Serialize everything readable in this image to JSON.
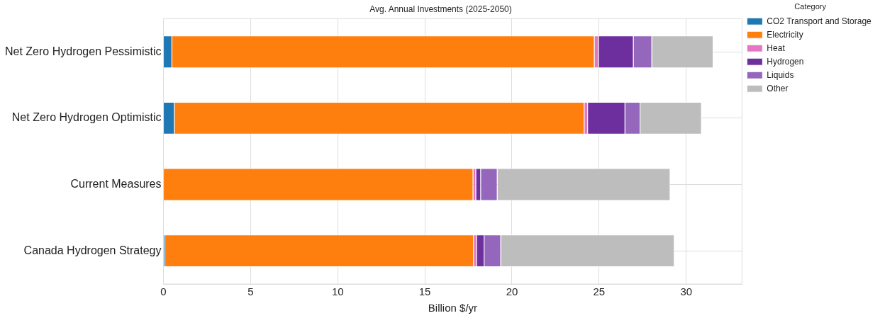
{
  "chart_data": {
    "type": "bar",
    "orientation": "horizontal",
    "stacked": true,
    "title": "Avg. Annual Investments (2025-2050)",
    "xlabel": "Billion $/yr",
    "legend_title": "Category",
    "legend": "top right",
    "grid": true,
    "categories": [
      "Net Zero Hydrogen Pessimistic",
      "Net Zero Hydrogen Optimistic",
      "Current Measures",
      "Canada Hydrogen Strategy"
    ],
    "xlim": [
      0,
      33.2
    ],
    "xticks": [
      0,
      5,
      10,
      15,
      20,
      25,
      30
    ],
    "series": [
      {
        "name": "CO2 Transport and Storage",
        "color": "#1f77b4",
        "values": [
          0.5,
          0.64,
          0,
          0.1
        ]
      },
      {
        "name": "Electricity",
        "color": "#ff7f0e",
        "values": [
          24.24,
          23.52,
          17.78,
          17.71
        ]
      },
      {
        "name": "Heat",
        "color": "#e377c2",
        "values": [
          0.24,
          0.2,
          0.16,
          0.17
        ]
      },
      {
        "name": "Hydrogen",
        "color": "#6d2e9e",
        "values": [
          2.0,
          2.14,
          0.28,
          0.44
        ]
      },
      {
        "name": "Liquids",
        "color": "#9467bd",
        "values": [
          1.06,
          0.87,
          0.95,
          0.95
        ]
      },
      {
        "name": "Other",
        "color": "#bdbdbd",
        "values": [
          3.52,
          3.52,
          9.92,
          9.96
        ]
      }
    ]
  }
}
